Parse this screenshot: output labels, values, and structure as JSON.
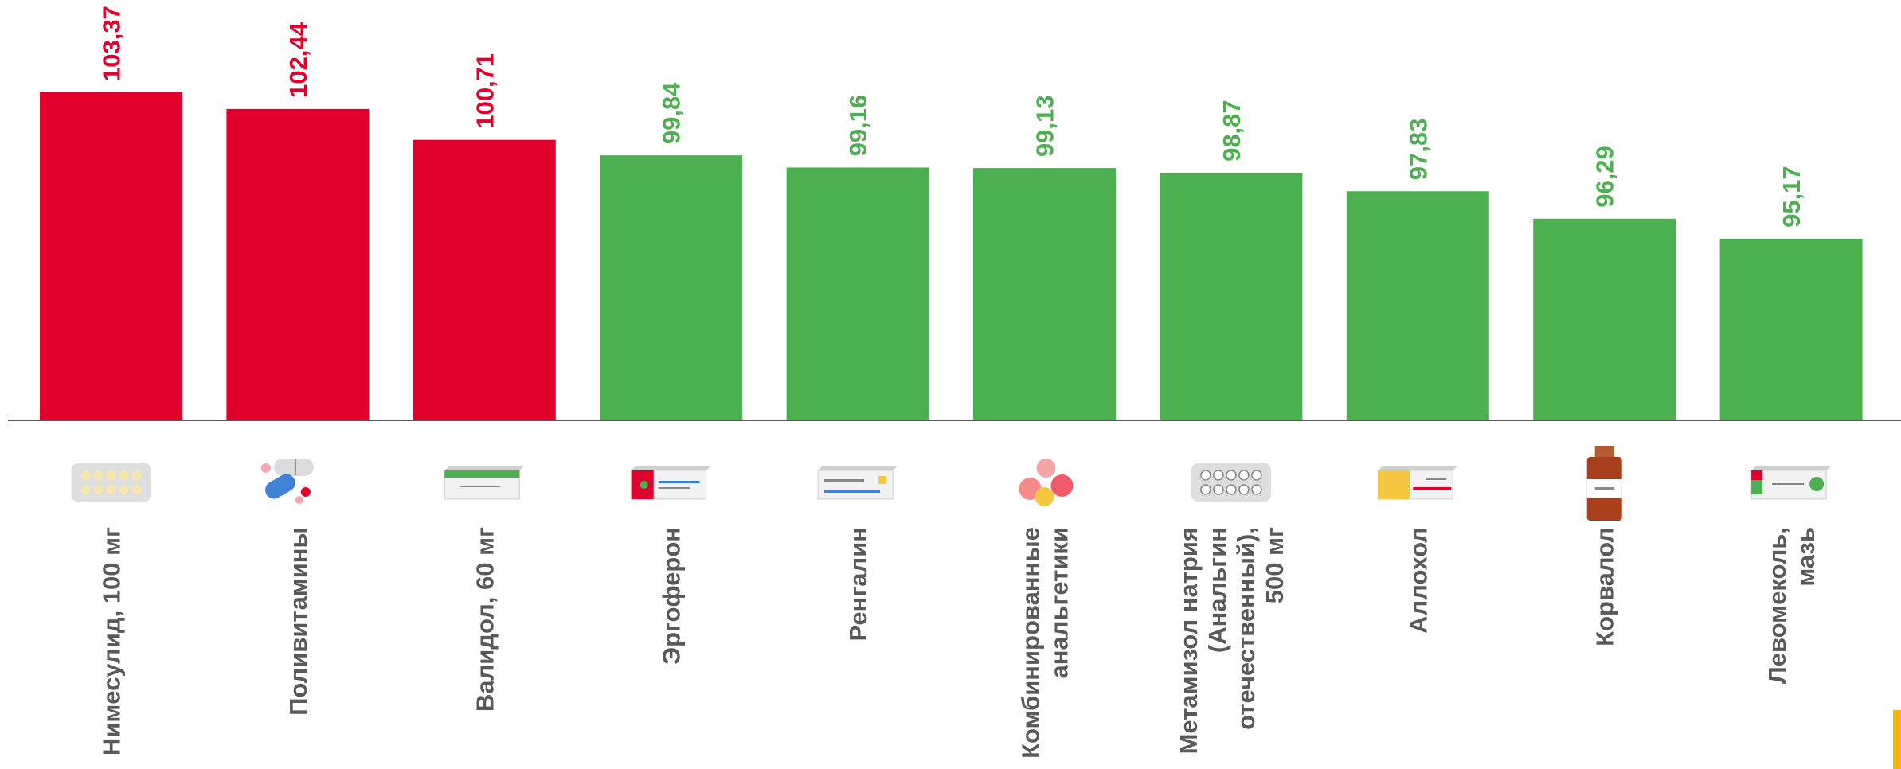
{
  "chart_data": {
    "type": "bar",
    "categories": [
      "Нимесулид, 100 мг",
      "Поливитамины",
      "Валидол, 60 мг",
      "Эргоферон",
      "Ренгалин",
      "Комбинированные анальгетики",
      "Метамизол натрия (Анальгин отечественный), 500 мг",
      "Аллохол",
      "Корвалол",
      "Левомеколь, мазь"
    ],
    "category_lines": [
      [
        "Нимесулид, 100 мг"
      ],
      [
        "Поливитамины"
      ],
      [
        "Валидол, 60 мг"
      ],
      [
        "Эргоферон"
      ],
      [
        "Ренгалин"
      ],
      [
        "Комбинированные",
        "анальгетики"
      ],
      [
        "Метамизол натрия",
        "(Анальгин",
        "отечественный),",
        "500 мг"
      ],
      [
        "Аллохол"
      ],
      [
        "Корвалол"
      ],
      [
        "Левомеколь,",
        "мазь"
      ]
    ],
    "values": [
      103.37,
      102.44,
      100.71,
      99.84,
      99.16,
      99.13,
      98.87,
      97.83,
      96.29,
      95.17
    ],
    "value_labels": [
      "103,37",
      "102,44",
      "100,71",
      "99,84",
      "99,16",
      "99,13",
      "98,87",
      "97,83",
      "96,29",
      "95,17"
    ],
    "icons": [
      "blister-pack-icon",
      "capsules-icon",
      "medicine-box-icon",
      "medicine-box-icon",
      "medicine-box-icon",
      "pills-icon",
      "blister-pack-icon",
      "medicine-box-icon",
      "bottle-icon",
      "ointment-box-icon"
    ],
    "colors": {
      "above_100": "#e0002b",
      "below_100": "#4caf50",
      "axis": "#595959",
      "labels": "#595959",
      "accent_tab": "#f5b800"
    },
    "ylim": [
      85,
      104.5
    ],
    "title": "",
    "xlabel": "",
    "ylabel": ""
  }
}
